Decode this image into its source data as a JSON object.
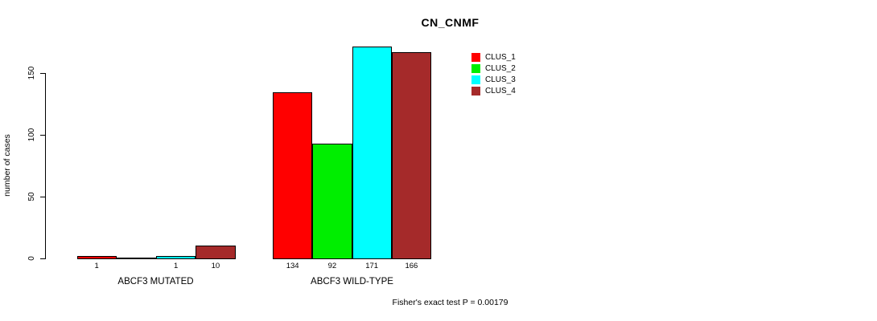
{
  "chart_data": {
    "type": "bar",
    "title": "CN_CNMF",
    "ylabel": "number of cases",
    "xlabel": "",
    "yticks": [
      0,
      50,
      100,
      150
    ],
    "ylim": [
      0,
      175
    ],
    "grid": false,
    "legend_position": "top-right",
    "series": [
      {
        "name": "CLUS_1",
        "color": "#FF0000"
      },
      {
        "name": "CLUS_2",
        "color": "#00EE00"
      },
      {
        "name": "CLUS_3",
        "color": "#00FFFF"
      },
      {
        "name": "CLUS_4",
        "color": "#A52A2A"
      }
    ],
    "groups": [
      {
        "label": "ABCF3 MUTATED",
        "values": [
          1,
          0,
          1,
          10
        ],
        "bar_labels": [
          "1",
          "",
          "1",
          "10"
        ]
      },
      {
        "label": "ABCF3 WILD-TYPE",
        "values": [
          134,
          92,
          171,
          166
        ],
        "bar_labels": [
          "134",
          "92",
          "171",
          "166"
        ]
      }
    ],
    "annotation": "Fisher's exact test P = 0.00179",
    "axis_color": "#000000",
    "text_color": "#000000",
    "background_color": "#FFFFFF"
  }
}
